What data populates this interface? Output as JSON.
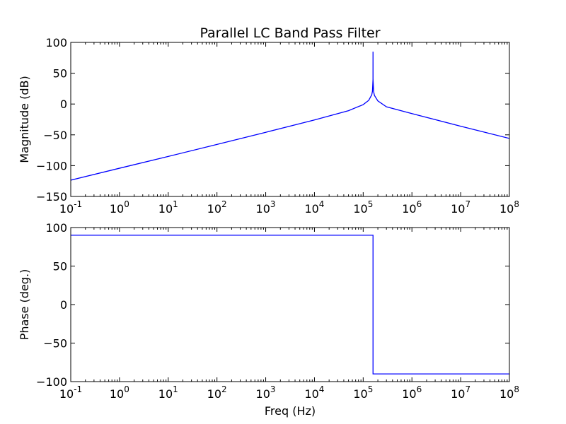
{
  "chart_data": [
    {
      "type": "line",
      "title": "Parallel LC Band Pass Filter",
      "xlabel": "",
      "ylabel": "Magnitude (dB)",
      "xscale": "log",
      "xlim": [
        0.1,
        100000000
      ],
      "ylim": [
        -150,
        100
      ],
      "xticks": [
        {
          "value": 0.1,
          "base": "10",
          "exp": "-1"
        },
        {
          "value": 1,
          "base": "10",
          "exp": "0"
        },
        {
          "value": 10,
          "base": "10",
          "exp": "1"
        },
        {
          "value": 100,
          "base": "10",
          "exp": "2"
        },
        {
          "value": 1000,
          "base": "10",
          "exp": "3"
        },
        {
          "value": 10000,
          "base": "10",
          "exp": "4"
        },
        {
          "value": 100000,
          "base": "10",
          "exp": "5"
        },
        {
          "value": 1000000,
          "base": "10",
          "exp": "6"
        },
        {
          "value": 10000000,
          "base": "10",
          "exp": "7"
        },
        {
          "value": 100000000,
          "base": "10",
          "exp": "8"
        }
      ],
      "yticks": [
        {
          "value": 100,
          "label": "100"
        },
        {
          "value": 50,
          "label": "50"
        },
        {
          "value": 0,
          "label": "0"
        },
        {
          "value": -50,
          "label": "−50"
        },
        {
          "value": -100,
          "label": "−100"
        },
        {
          "value": -150,
          "label": "−150"
        }
      ],
      "grid": false,
      "series": [
        {
          "color": "#0000ff",
          "x": [
            0.1,
            1,
            10,
            100,
            1000,
            10000,
            50000,
            100000,
            130000,
            150000,
            155000,
            159000,
            159150,
            159300,
            164000,
            170000,
            200000,
            300000,
            1000000,
            10000000,
            100000000
          ],
          "y": [
            -123.6,
            -104.2,
            -85.1,
            -65.5,
            -45.9,
            -25.9,
            -10.8,
            -1.0,
            6.0,
            15.0,
            21.0,
            40.0,
            85.0,
            40.0,
            20.0,
            14.0,
            5.0,
            -4.5,
            -15.6,
            -36.0,
            -55.8
          ]
        }
      ]
    },
    {
      "type": "line",
      "title": "",
      "xlabel": "Freq (Hz)",
      "ylabel": "Phase (deg.)",
      "xscale": "log",
      "xlim": [
        0.1,
        100000000
      ],
      "ylim": [
        -100,
        100
      ],
      "xticks": [
        {
          "value": 0.1,
          "base": "10",
          "exp": "-1"
        },
        {
          "value": 1,
          "base": "10",
          "exp": "0"
        },
        {
          "value": 10,
          "base": "10",
          "exp": "1"
        },
        {
          "value": 100,
          "base": "10",
          "exp": "2"
        },
        {
          "value": 1000,
          "base": "10",
          "exp": "3"
        },
        {
          "value": 10000,
          "base": "10",
          "exp": "4"
        },
        {
          "value": 100000,
          "base": "10",
          "exp": "5"
        },
        {
          "value": 1000000,
          "base": "10",
          "exp": "6"
        },
        {
          "value": 10000000,
          "base": "10",
          "exp": "7"
        },
        {
          "value": 100000000,
          "base": "10",
          "exp": "8"
        }
      ],
      "yticks": [
        {
          "value": 100,
          "label": "100"
        },
        {
          "value": 50,
          "label": "50"
        },
        {
          "value": 0,
          "label": "0"
        },
        {
          "value": -50,
          "label": "−50"
        },
        {
          "value": -100,
          "label": "−100"
        }
      ],
      "grid": false,
      "series": [
        {
          "color": "#0000ff",
          "x": [
            0.1,
            159150,
            159150,
            100000000
          ],
          "y": [
            90,
            90,
            -90,
            -90
          ]
        }
      ]
    }
  ]
}
